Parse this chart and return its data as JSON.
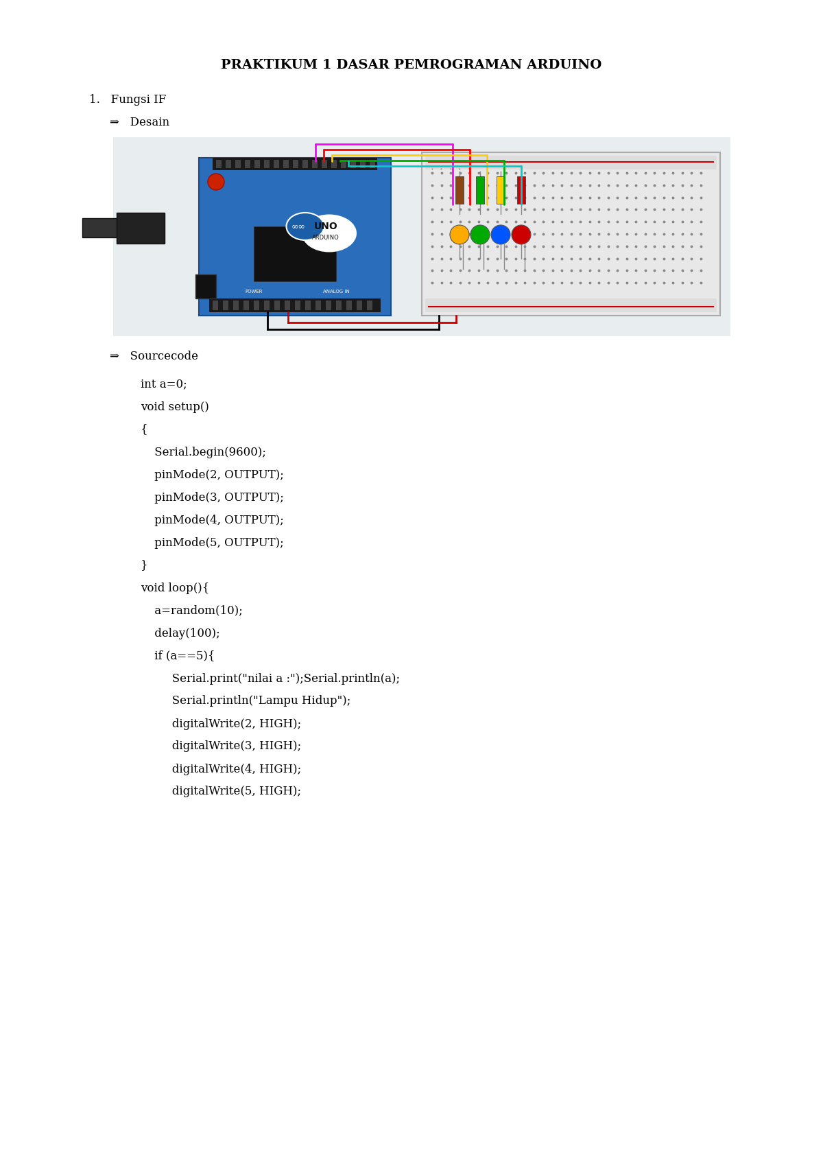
{
  "title": "PRAKTIKUM 1 DASAR PEMROGRAMAN ARDUINO",
  "title_fontsize": 14,
  "section1": "1.   Fungsi IF",
  "subsection_desain": "⇒   Desain",
  "subsection_sourcecode": "⇒   Sourcecode",
  "code_lines": [
    [
      "int a=0;",
      0
    ],
    [
      "void setup()",
      0
    ],
    [
      "{",
      0
    ],
    [
      " Serial.begin(9600);",
      1
    ],
    [
      " pinMode(2, OUTPUT);",
      1
    ],
    [
      " pinMode(3, OUTPUT);",
      1
    ],
    [
      " pinMode(4, OUTPUT);",
      1
    ],
    [
      " pinMode(5, OUTPUT);",
      1
    ],
    [
      "}",
      0
    ],
    [
      "void loop(){",
      0
    ],
    [
      " a=random(10);",
      1
    ],
    [
      " delay(100);",
      1
    ],
    [
      " if (a==5){",
      1
    ],
    [
      "   Serial.print(\"nilai a :\");Serial.println(a);",
      2
    ],
    [
      "   Serial.println(\"Lampu Hidup\");",
      2
    ],
    [
      "   digitalWrite(2, HIGH);",
      2
    ],
    [
      "   digitalWrite(3, HIGH);",
      2
    ],
    [
      "   digitalWrite(4, HIGH);",
      2
    ],
    [
      "   digitalWrite(5, HIGH);",
      2
    ]
  ],
  "bg_color": "#ffffff",
  "text_color": "#000000",
  "image_bg_color": "#e8edf0",
  "wire_colors": [
    "#ff00ff",
    "#ff0000",
    "#ffcc00",
    "#00aa00",
    "#00cccc"
  ],
  "led_colors": [
    "#ffaa00",
    "#00aa00",
    "#0055ff",
    "#cc0000"
  ],
  "res_colors": [
    "#8B4513",
    "#00aa00",
    "#ffcc00",
    "#cc0000"
  ]
}
